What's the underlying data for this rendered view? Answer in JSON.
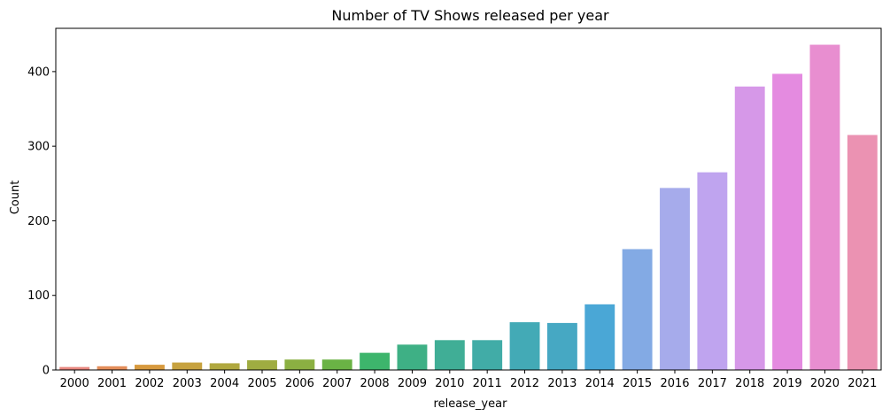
{
  "chart_data": {
    "type": "bar",
    "title": "Number of TV Shows released per year",
    "xlabel": "release_year",
    "ylabel": "Count",
    "ylim": [
      0,
      458
    ],
    "yticks": [
      0,
      100,
      200,
      300,
      400
    ],
    "grid": false,
    "categories": [
      "2000",
      "2001",
      "2002",
      "2003",
      "2004",
      "2005",
      "2006",
      "2007",
      "2008",
      "2009",
      "2010",
      "2011",
      "2012",
      "2013",
      "2014",
      "2015",
      "2016",
      "2017",
      "2018",
      "2019",
      "2020",
      "2021"
    ],
    "values": [
      4,
      5,
      7,
      10,
      9,
      13,
      14,
      14,
      23,
      34,
      40,
      40,
      64,
      63,
      88,
      162,
      244,
      265,
      380,
      397,
      436,
      315
    ],
    "colors": [
      "#e8877f",
      "#e48e5a",
      "#d79a3e",
      "#c7a23f",
      "#b0a83f",
      "#9fac41",
      "#8bb042",
      "#6ab345",
      "#3db56c",
      "#3eb085",
      "#40ae96",
      "#41aca7",
      "#43aab6",
      "#46a8c3",
      "#4aa7d6",
      "#83aae4",
      "#a6abeb",
      "#bfa4ef",
      "#d698e8",
      "#e48be0",
      "#e88ed0",
      "#eb92b2"
    ]
  }
}
